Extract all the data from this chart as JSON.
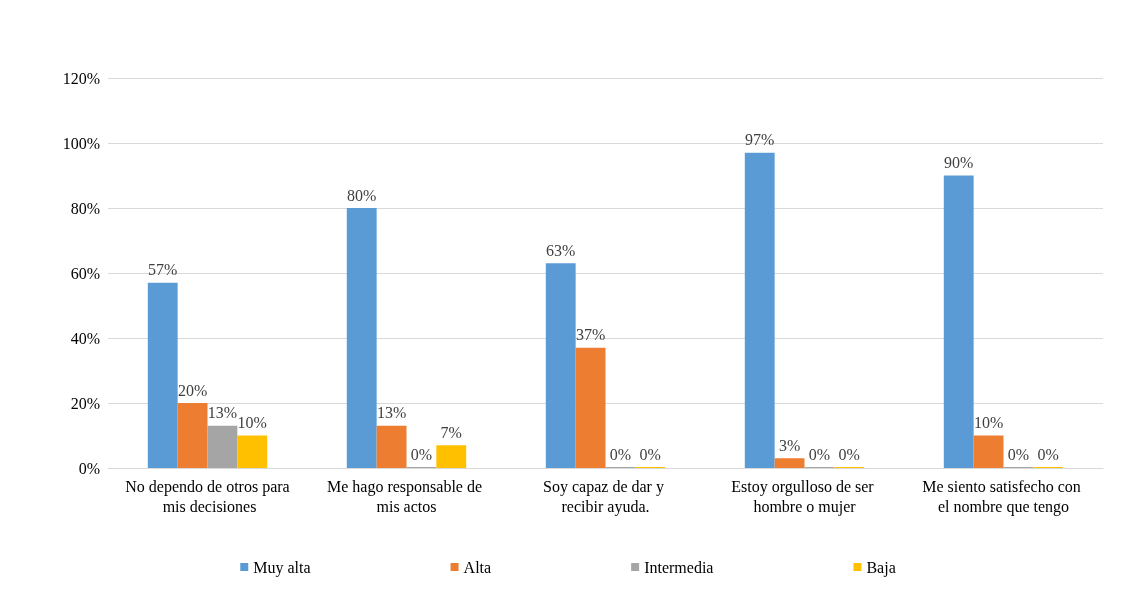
{
  "chart_data": {
    "type": "bar",
    "categories": [
      "No dependo de otros para mis decisiones",
      "Me hago responsable de mis actos",
      "Soy capaz de dar y recibir ayuda.",
      "Estoy orgulloso de ser hombre o mujer",
      "Me siento satisfecho con el nombre que tengo"
    ],
    "series": [
      {
        "name": "Muy alta",
        "color": "#5b9bd5",
        "values": [
          57,
          80,
          63,
          97,
          90
        ],
        "value_labels": [
          "57%",
          "80%",
          "63%",
          "97%",
          "90%"
        ]
      },
      {
        "name": "Alta",
        "color": "#ed7d31",
        "values": [
          20,
          13,
          37,
          3,
          10
        ],
        "value_labels": [
          "20%",
          "13%",
          "37%",
          "3%",
          "10%"
        ]
      },
      {
        "name": "Intermedia",
        "color": "#a5a5a5",
        "values": [
          13,
          0,
          0,
          0,
          0
        ],
        "value_labels": [
          "13%",
          "0%",
          "0%",
          "0%",
          "0%"
        ]
      },
      {
        "name": "Baja",
        "color": "#ffc000",
        "values": [
          10,
          7,
          0,
          0,
          0
        ],
        "value_labels": [
          "10%",
          "7%",
          "0%",
          "0%",
          "0%"
        ]
      }
    ],
    "ylim": [
      0,
      120
    ],
    "yticks": [
      {
        "value": 0,
        "label": "0%"
      },
      {
        "value": 20,
        "label": "20%"
      },
      {
        "value": 40,
        "label": "40%"
      },
      {
        "value": 60,
        "label": "60%"
      },
      {
        "value": 80,
        "label": "80%"
      },
      {
        "value": 100,
        "label": "100%"
      },
      {
        "value": 120,
        "label": "120%"
      }
    ],
    "grid": "y",
    "legend": "bottom"
  }
}
